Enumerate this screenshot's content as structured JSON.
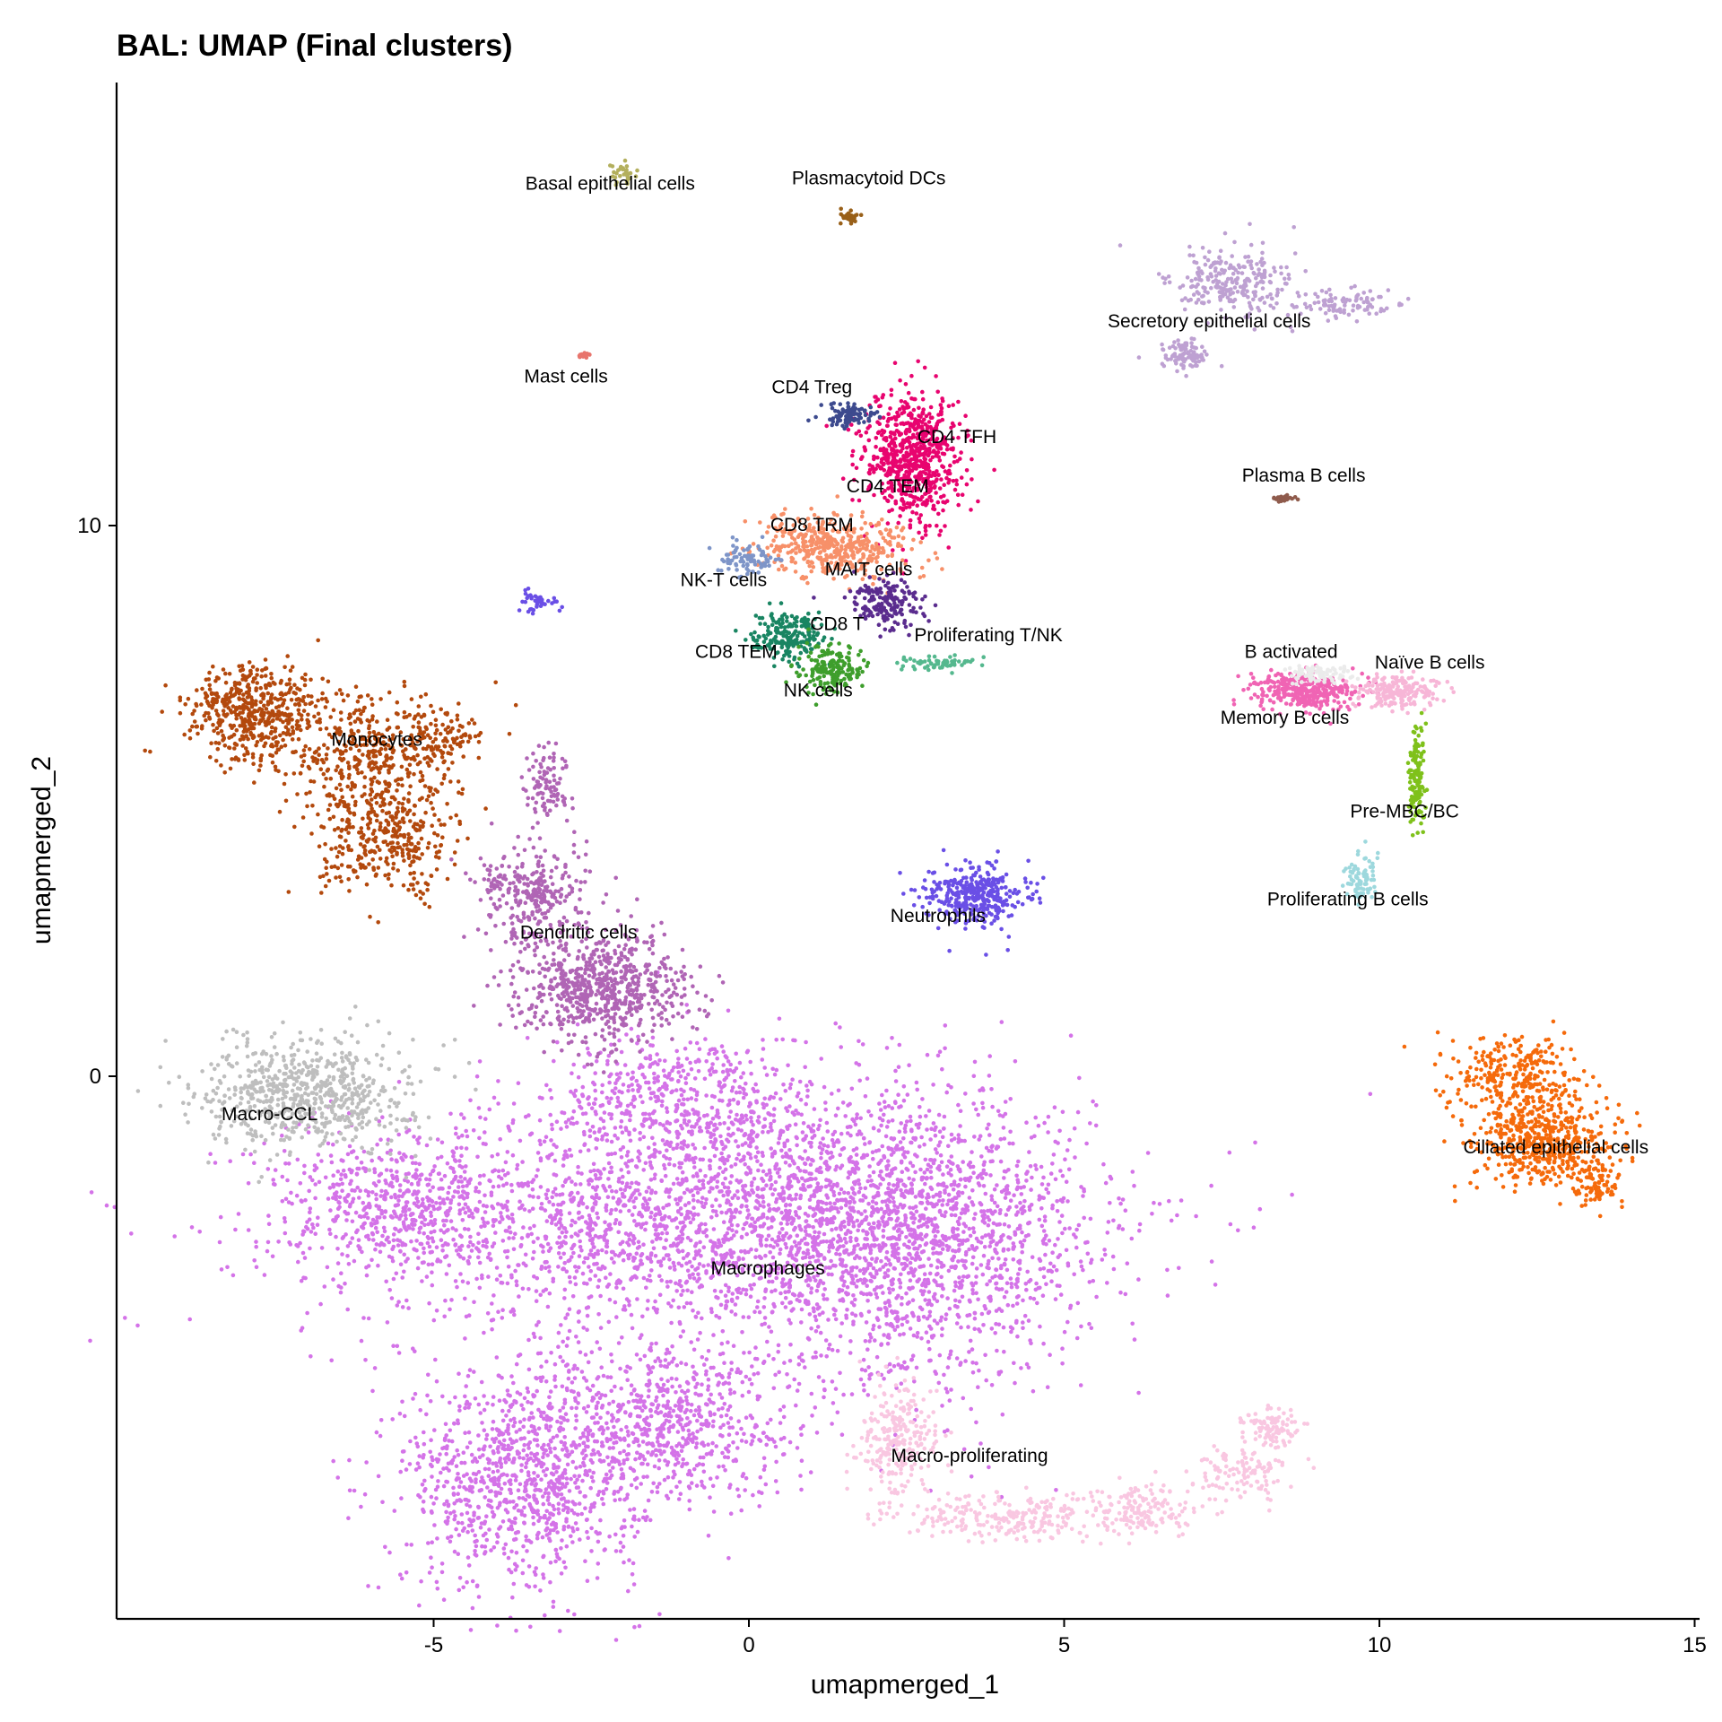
{
  "chart_data": {
    "type": "scatter",
    "title": "BAL: UMAP (Final clusters)",
    "xlabel": "umapmerged_1",
    "ylabel": "umapmerged_2",
    "xlim": [
      -10,
      15
    ],
    "ylim": [
      -9.8,
      18.1
    ],
    "x_ticks": [
      -5,
      0,
      5,
      10,
      15
    ],
    "y_ticks": [
      0,
      10
    ],
    "grid": false,
    "legend": "none (labels on clusters)",
    "clusters": [
      {
        "name": "Macrophages",
        "color": "#D473E8",
        "label_at": [
          0.3,
          -3.6
        ],
        "blobs": [
          {
            "cx": -0.9,
            "cy": -2.6,
            "rx": 5.4,
            "ry": 1.9,
            "n": 2600
          },
          {
            "cx": 2.6,
            "cy": -3.0,
            "rx": 2.5,
            "ry": 2.4,
            "n": 1500
          },
          {
            "cx": -3.6,
            "cy": -7.3,
            "rx": 1.7,
            "ry": 1.8,
            "n": 1000
          },
          {
            "cx": -1.3,
            "cy": -6.3,
            "rx": 1.8,
            "ry": 1.3,
            "n": 700
          },
          {
            "cx": -1.0,
            "cy": -0.4,
            "rx": 1.9,
            "ry": 1.1,
            "n": 500
          },
          {
            "cx": -5.6,
            "cy": -2.3,
            "rx": 1.6,
            "ry": 1.0,
            "n": 400
          }
        ]
      },
      {
        "name": "Macro-CCL",
        "color": "#BEBEBE",
        "label_at": [
          -7.6,
          -0.8
        ],
        "blobs": [
          {
            "cx": -7.0,
            "cy": -0.3,
            "rx": 1.5,
            "ry": 0.9,
            "n": 700
          }
        ]
      },
      {
        "name": "Monocytes",
        "color": "#B3490D",
        "label_at": [
          -5.9,
          6.0
        ],
        "blobs": [
          {
            "cx": -7.8,
            "cy": 6.6,
            "rx": 1.0,
            "ry": 0.8,
            "n": 500
          },
          {
            "cx": -6.0,
            "cy": 5.8,
            "rx": 1.3,
            "ry": 1.0,
            "n": 400
          },
          {
            "cx": -5.7,
            "cy": 4.3,
            "rx": 1.0,
            "ry": 0.9,
            "n": 350
          },
          {
            "cx": -4.9,
            "cy": 6.2,
            "rx": 0.7,
            "ry": 0.4,
            "n": 80
          }
        ]
      },
      {
        "name": "Dendritic cells",
        "color": "#B065B5",
        "label_at": [
          -2.7,
          2.5
        ],
        "blobs": [
          {
            "cx": -2.3,
            "cy": 1.6,
            "rx": 1.2,
            "ry": 0.9,
            "n": 700
          },
          {
            "cx": -3.4,
            "cy": 3.3,
            "rx": 0.8,
            "ry": 0.8,
            "n": 300
          },
          {
            "cx": -3.2,
            "cy": 5.3,
            "rx": 0.3,
            "ry": 0.6,
            "n": 100
          }
        ]
      },
      {
        "name": "Neutrophils",
        "color": "#6A4FE6",
        "label_at": [
          3.0,
          2.8
        ],
        "blobs": [
          {
            "cx": 3.6,
            "cy": 3.3,
            "rx": 0.7,
            "ry": 0.5,
            "n": 350
          }
        ]
      },
      {
        "name": "Macro-proliferating",
        "color": "#F9C7E1",
        "label_at": [
          3.5,
          -7.0
        ],
        "blobs": [
          {
            "cx": 2.4,
            "cy": -6.6,
            "rx": 0.6,
            "ry": 0.9,
            "n": 250
          },
          {
            "cx": 4.0,
            "cy": -8.0,
            "rx": 1.6,
            "ry": 0.4,
            "n": 250
          },
          {
            "cx": 6.3,
            "cy": -7.9,
            "rx": 1.0,
            "ry": 0.4,
            "n": 150
          },
          {
            "cx": 7.8,
            "cy": -7.2,
            "rx": 0.7,
            "ry": 0.4,
            "n": 120
          },
          {
            "cx": 8.3,
            "cy": -6.4,
            "rx": 0.4,
            "ry": 0.3,
            "n": 100
          }
        ]
      },
      {
        "name": "Ciliated epithelial cells",
        "color": "#F56A0B",
        "label_at": [
          12.8,
          -1.4
        ],
        "blobs": [
          {
            "cx": 12.6,
            "cy": -1.2,
            "rx": 1.0,
            "ry": 0.7,
            "n": 500
          },
          {
            "cx": 12.2,
            "cy": 0.0,
            "rx": 0.9,
            "ry": 0.7,
            "n": 300
          },
          {
            "cx": 13.5,
            "cy": -2.0,
            "rx": 0.3,
            "ry": 0.4,
            "n": 80
          }
        ]
      },
      {
        "name": "Secretory epithelial cells",
        "color": "#BEA1D2",
        "label_at": [
          7.3,
          13.6
        ],
        "blobs": [
          {
            "cx": 7.6,
            "cy": 14.4,
            "rx": 0.9,
            "ry": 0.6,
            "n": 250
          },
          {
            "cx": 9.4,
            "cy": 14.0,
            "rx": 0.8,
            "ry": 0.25,
            "n": 100
          },
          {
            "cx": 6.9,
            "cy": 13.1,
            "rx": 0.35,
            "ry": 0.25,
            "n": 100
          }
        ]
      },
      {
        "name": "CD4 TFH",
        "color": "#E8046F",
        "label_at": [
          3.3,
          11.5
        ],
        "blobs": [
          {
            "cx": 2.6,
            "cy": 11.2,
            "rx": 0.7,
            "ry": 1.1,
            "n": 700
          }
        ]
      },
      {
        "name": "CD4 TEM",
        "color": "#E8046F",
        "label_at": [
          2.2,
          10.6
        ],
        "blobs": []
      },
      {
        "name": "CD4 Treg",
        "color": "#3D4A8E",
        "label_at": [
          1.0,
          12.4
        ],
        "blobs": [
          {
            "cx": 1.6,
            "cy": 12.0,
            "rx": 0.4,
            "ry": 0.2,
            "n": 100
          }
        ]
      },
      {
        "name": "CD8 TRM",
        "color": "#F79069",
        "label_at": [
          1.0,
          9.9
        ],
        "blobs": [
          {
            "cx": 1.4,
            "cy": 9.6,
            "rx": 1.1,
            "ry": 0.5,
            "n": 450
          }
        ]
      },
      {
        "name": "NK-T cells",
        "color": "#7E95C8",
        "label_at": [
          -0.4,
          8.9
        ],
        "blobs": [
          {
            "cx": 0.0,
            "cy": 9.4,
            "rx": 0.4,
            "ry": 0.25,
            "n": 90
          }
        ]
      },
      {
        "name": "MAIT cells",
        "color": "#5A2C8E",
        "label_at": [
          1.9,
          9.1
        ],
        "blobs": [
          {
            "cx": 2.2,
            "cy": 8.6,
            "rx": 0.6,
            "ry": 0.4,
            "n": 180
          }
        ]
      },
      {
        "name": "CD8 T",
        "color": "#5A2C8E",
        "label_at": [
          1.4,
          8.1
        ],
        "blobs": []
      },
      {
        "name": "CD8 TEM",
        "color": "#198562",
        "label_at": [
          -0.2,
          7.6
        ],
        "blobs": [
          {
            "cx": 0.6,
            "cy": 8.0,
            "rx": 0.5,
            "ry": 0.35,
            "n": 200
          }
        ]
      },
      {
        "name": "NK cells",
        "color": "#3E9E2C",
        "label_at": [
          1.1,
          6.9
        ],
        "blobs": [
          {
            "cx": 1.3,
            "cy": 7.4,
            "rx": 0.5,
            "ry": 0.4,
            "n": 180
          }
        ]
      },
      {
        "name": "Proliferating T/NK",
        "color": "#55B88E",
        "label_at": [
          3.8,
          7.9
        ],
        "blobs": [
          {
            "cx": 3.0,
            "cy": 7.5,
            "rx": 0.5,
            "ry": 0.12,
            "n": 60
          }
        ]
      },
      {
        "name": "Memory B cells",
        "color": "#F064B4",
        "label_at": [
          8.5,
          6.4
        ],
        "blobs": [
          {
            "cx": 8.8,
            "cy": 7.0,
            "rx": 0.75,
            "ry": 0.3,
            "n": 350
          }
        ]
      },
      {
        "name": "Naïve B cells",
        "color": "#F7B6D7",
        "label_at": [
          10.8,
          7.4
        ],
        "blobs": [
          {
            "cx": 10.3,
            "cy": 7.0,
            "rx": 0.6,
            "ry": 0.28,
            "n": 200
          }
        ]
      },
      {
        "name": "B activated",
        "color": "#EBEBEB",
        "label_at": [
          8.6,
          7.6
        ],
        "blobs": [
          {
            "cx": 9.0,
            "cy": 7.3,
            "rx": 0.5,
            "ry": 0.15,
            "n": 80
          }
        ]
      },
      {
        "name": "Pre-MBC/BC",
        "color": "#7FC11B",
        "label_at": [
          10.4,
          4.7
        ],
        "blobs": [
          {
            "cx": 10.6,
            "cy": 5.4,
            "rx": 0.12,
            "ry": 0.9,
            "n": 150
          }
        ]
      },
      {
        "name": "Proliferating B cells",
        "color": "#9DD8DD",
        "label_at": [
          9.5,
          3.1
        ],
        "blobs": [
          {
            "cx": 9.7,
            "cy": 3.6,
            "rx": 0.25,
            "ry": 0.4,
            "n": 80
          }
        ]
      },
      {
        "name": "Plasma B cells",
        "color": "#8F5B4C",
        "label_at": [
          8.8,
          10.8
        ],
        "blobs": [
          {
            "cx": 8.5,
            "cy": 10.5,
            "rx": 0.15,
            "ry": 0.05,
            "n": 25
          }
        ]
      },
      {
        "name": "Mast cells",
        "color": "#E8756D",
        "label_at": [
          -2.9,
          12.6
        ],
        "blobs": [
          {
            "cx": -2.6,
            "cy": 13.1,
            "rx": 0.08,
            "ry": 0.05,
            "n": 15
          }
        ]
      },
      {
        "name": "Basal epithelial cells",
        "color": "#B3AF5D",
        "label_at": [
          -2.2,
          16.1
        ],
        "blobs": [
          {
            "cx": -2.0,
            "cy": 16.4,
            "rx": 0.2,
            "ry": 0.15,
            "n": 30
          }
        ]
      },
      {
        "name": "Plasmacytoid DCs",
        "color": "#996019",
        "label_at": [
          1.9,
          16.2
        ],
        "blobs": [
          {
            "cx": 1.6,
            "cy": 15.6,
            "rx": 0.15,
            "ry": 0.1,
            "n": 30
          }
        ]
      },
      {
        "name": "Unlabeled blue cluster",
        "color": "#6A4FE6",
        "label_at": null,
        "blobs": [
          {
            "cx": -3.3,
            "cy": 8.6,
            "rx": 0.3,
            "ry": 0.2,
            "n": 40
          }
        ]
      }
    ]
  }
}
